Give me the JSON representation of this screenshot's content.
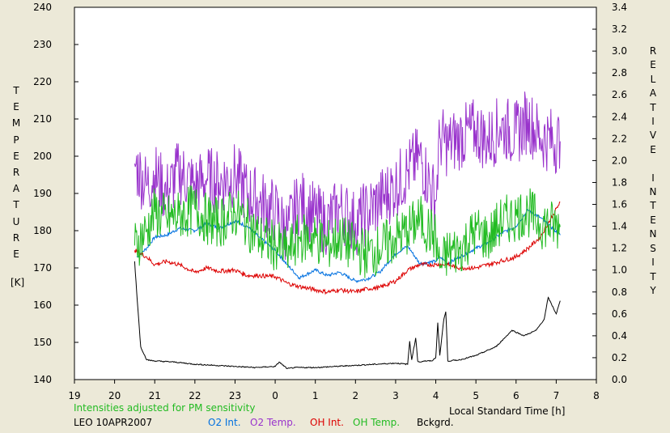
{
  "chart_data": {
    "type": "line",
    "xlabel": "Local Standard Time [h]",
    "x_ticks": [
      "19",
      "20",
      "21",
      "22",
      "23",
      "0",
      "1",
      "2",
      "3",
      "4",
      "5",
      "6",
      "7",
      "8"
    ],
    "xlim": [
      19,
      8
    ],
    "left_axis": {
      "label_letters": [
        "T",
        "E",
        "M",
        "P",
        "E",
        "R",
        "A",
        "T",
        "U",
        "R",
        "E"
      ],
      "unit": "[K]",
      "ylim": [
        140,
        240
      ],
      "ticks": [
        "140",
        "150",
        "160",
        "170",
        "180",
        "190",
        "200",
        "210",
        "220",
        "230",
        "240"
      ]
    },
    "right_axis": {
      "label_letters": [
        "R",
        "E",
        "L",
        "A",
        "T",
        "I",
        "V",
        "E",
        "",
        "I",
        "N",
        "T",
        "E",
        "N",
        "S",
        "I",
        "T",
        "Y"
      ],
      "ylim": [
        0.0,
        3.4
      ],
      "ticks": [
        "0.0",
        "0.2",
        "0.4",
        "0.6",
        "0.8",
        "1.0",
        "1.2",
        "1.4",
        "1.6",
        "1.8",
        "2.0",
        "2.2",
        "2.4",
        "2.6",
        "2.8",
        "3.0",
        "3.2",
        "3.4"
      ]
    },
    "annotation": "Intensities adjusted for PM sensitivity",
    "station": "LEO 10APR2007",
    "series": [
      {
        "name": "O2 Int.",
        "color": "#0070e0",
        "axis": "right",
        "x": [
          20.55,
          20.8,
          21,
          21.3,
          21.6,
          22,
          22.3,
          22.6,
          23,
          23.3,
          23.6,
          24,
          24.3,
          24.6,
          25,
          25.3,
          25.6,
          26,
          26.3,
          26.6,
          27,
          27.3,
          27.6,
          28,
          28.1,
          28.3,
          28.6,
          29,
          29.3,
          29.6,
          30,
          30.3,
          30.6,
          31.1
        ],
        "y": [
          1.12,
          1.2,
          1.3,
          1.32,
          1.38,
          1.36,
          1.43,
          1.38,
          1.45,
          1.4,
          1.3,
          1.18,
          1.05,
          0.93,
          1.0,
          0.95,
          0.98,
          0.9,
          0.92,
          0.98,
          1.15,
          1.22,
          1.06,
          1.08,
          1.12,
          1.06,
          1.12,
          1.2,
          1.25,
          1.33,
          1.4,
          1.55,
          1.48,
          1.32
        ]
      },
      {
        "name": "O2 Temp.",
        "color": "#9933cc",
        "axis": "left",
        "x": [
          20.5,
          20.8,
          21,
          21.3,
          21.6,
          22,
          22.3,
          22.6,
          23,
          23.3,
          23.6,
          24,
          24.3,
          24.6,
          25,
          25.3,
          25.6,
          26,
          26.3,
          26.6,
          27,
          27.3,
          27.6,
          28,
          28.1,
          28.3,
          28.6,
          29,
          29.3,
          29.6,
          30,
          30.3,
          30.6,
          31.1
        ],
        "y": [
          198,
          192,
          195,
          190,
          196,
          192,
          194,
          193,
          195,
          190,
          188,
          185,
          180,
          188,
          184,
          182,
          186,
          182,
          185,
          188,
          192,
          196,
          200,
          188,
          205,
          203,
          205,
          207,
          204,
          208,
          206,
          210,
          205,
          204
        ]
      },
      {
        "name": "OH Int.",
        "color": "#dd0000",
        "axis": "right",
        "x": [
          20.5,
          20.8,
          21,
          21.3,
          21.6,
          22,
          22.3,
          22.6,
          23,
          23.3,
          23.6,
          24,
          24.3,
          24.6,
          25,
          25.3,
          25.6,
          26,
          26.3,
          26.6,
          27,
          27.3,
          27.6,
          28,
          28.3,
          28.6,
          29,
          29.3,
          29.6,
          30,
          30.3,
          30.6,
          31.1
        ],
        "y": [
          1.18,
          1.12,
          1.05,
          1.08,
          1.05,
          0.98,
          1.02,
          0.99,
          1.0,
          0.95,
          0.95,
          0.94,
          0.88,
          0.85,
          0.82,
          0.8,
          0.82,
          0.8,
          0.83,
          0.84,
          0.9,
          1.0,
          1.05,
          1.05,
          1.05,
          1.02,
          1.02,
          1.05,
          1.08,
          1.12,
          1.2,
          1.3,
          1.62
        ]
      },
      {
        "name": "OH Temp.",
        "color": "#22bb22",
        "axis": "left",
        "x": [
          20.5,
          20.8,
          21,
          21.3,
          21.6,
          22,
          22.3,
          22.6,
          23,
          23.3,
          23.6,
          24,
          24.3,
          24.6,
          25,
          25.3,
          25.6,
          26,
          26.3,
          26.6,
          27,
          27.3,
          27.6,
          28,
          28.1,
          28.3,
          28.6,
          29,
          29.3,
          29.6,
          30,
          30.3,
          30.6,
          31.1
        ],
        "y": [
          176,
          180,
          185,
          183,
          184,
          186,
          183,
          182,
          185,
          182,
          178,
          176,
          174,
          178,
          178,
          176,
          178,
          175,
          174,
          175,
          178,
          180,
          183,
          178,
          170,
          174,
          175,
          180,
          178,
          182,
          184,
          185,
          182,
          181
        ]
      },
      {
        "name": "Bckgrd.",
        "color": "#000000",
        "axis": "right",
        "x": [
          20.5,
          20.55,
          20.65,
          20.8,
          21,
          21.5,
          22,
          22.5,
          23,
          23.5,
          24,
          24.1,
          24.3,
          24.5,
          25,
          25.5,
          26,
          26.5,
          27,
          27.3,
          27.35,
          27.4,
          27.5,
          27.55,
          27.6,
          27.7,
          27.9,
          28,
          28.05,
          28.1,
          28.2,
          28.25,
          28.3,
          28.6,
          29,
          29.5,
          29.9,
          30.2,
          30.5,
          30.7,
          30.8,
          31.0,
          31.1
        ],
        "y": [
          1.08,
          0.8,
          0.3,
          0.18,
          0.17,
          0.16,
          0.14,
          0.13,
          0.12,
          0.11,
          0.12,
          0.16,
          0.1,
          0.11,
          0.11,
          0.12,
          0.13,
          0.14,
          0.15,
          0.14,
          0.35,
          0.18,
          0.38,
          0.17,
          0.16,
          0.17,
          0.17,
          0.2,
          0.52,
          0.22,
          0.55,
          0.62,
          0.17,
          0.18,
          0.22,
          0.3,
          0.45,
          0.4,
          0.45,
          0.55,
          0.75,
          0.6,
          0.72
        ]
      }
    ]
  }
}
